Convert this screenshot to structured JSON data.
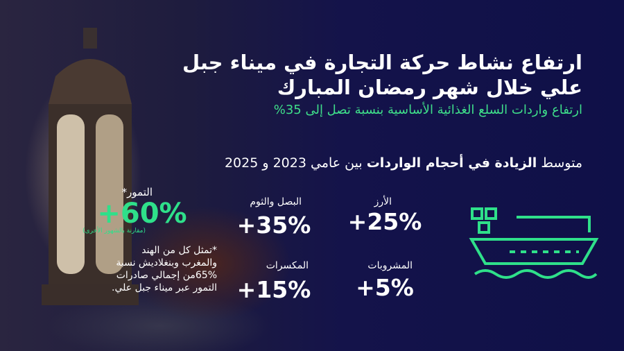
{
  "title_lines": [
    "ارتفاع نشاط حركة التجارة في ميناء جبل",
    "علي خلال شهر رمضان المبارك"
  ],
  "subtitle": "ارتفاع واردات السلع الغذائية الأساسية بنسبة تصل إلى 35%",
  "heading": {
    "prefix": "متوسط",
    "bold": "الزيادة في أحجام الواردات",
    "suffix": "بين عامي 2023 و 2025"
  },
  "stats": [
    {
      "label": "الأرز",
      "value": "+25%"
    },
    {
      "label": "البصل والثوم",
      "value": "+35%"
    },
    {
      "label": "المشروبات",
      "value": "+5%"
    },
    {
      "label": "المكسرات",
      "value": "+15%"
    }
  ],
  "dates": {
    "label": "التمور*",
    "value": "+60%",
    "comparison": "(مقارنة بالشهور الأخرى)",
    "note_lines": [
      "*تمثل كل من الهند",
      "والمغرب وبنغلاديش نسبة",
      "65%من إجمالي صادرات",
      "التمور عبر ميناء جبل علي."
    ]
  },
  "colors": {
    "accent": "#2fe08a",
    "background": "#13124a"
  },
  "icons": [
    "cargo-ship-icon",
    "lantern-image",
    "dates-image"
  ]
}
